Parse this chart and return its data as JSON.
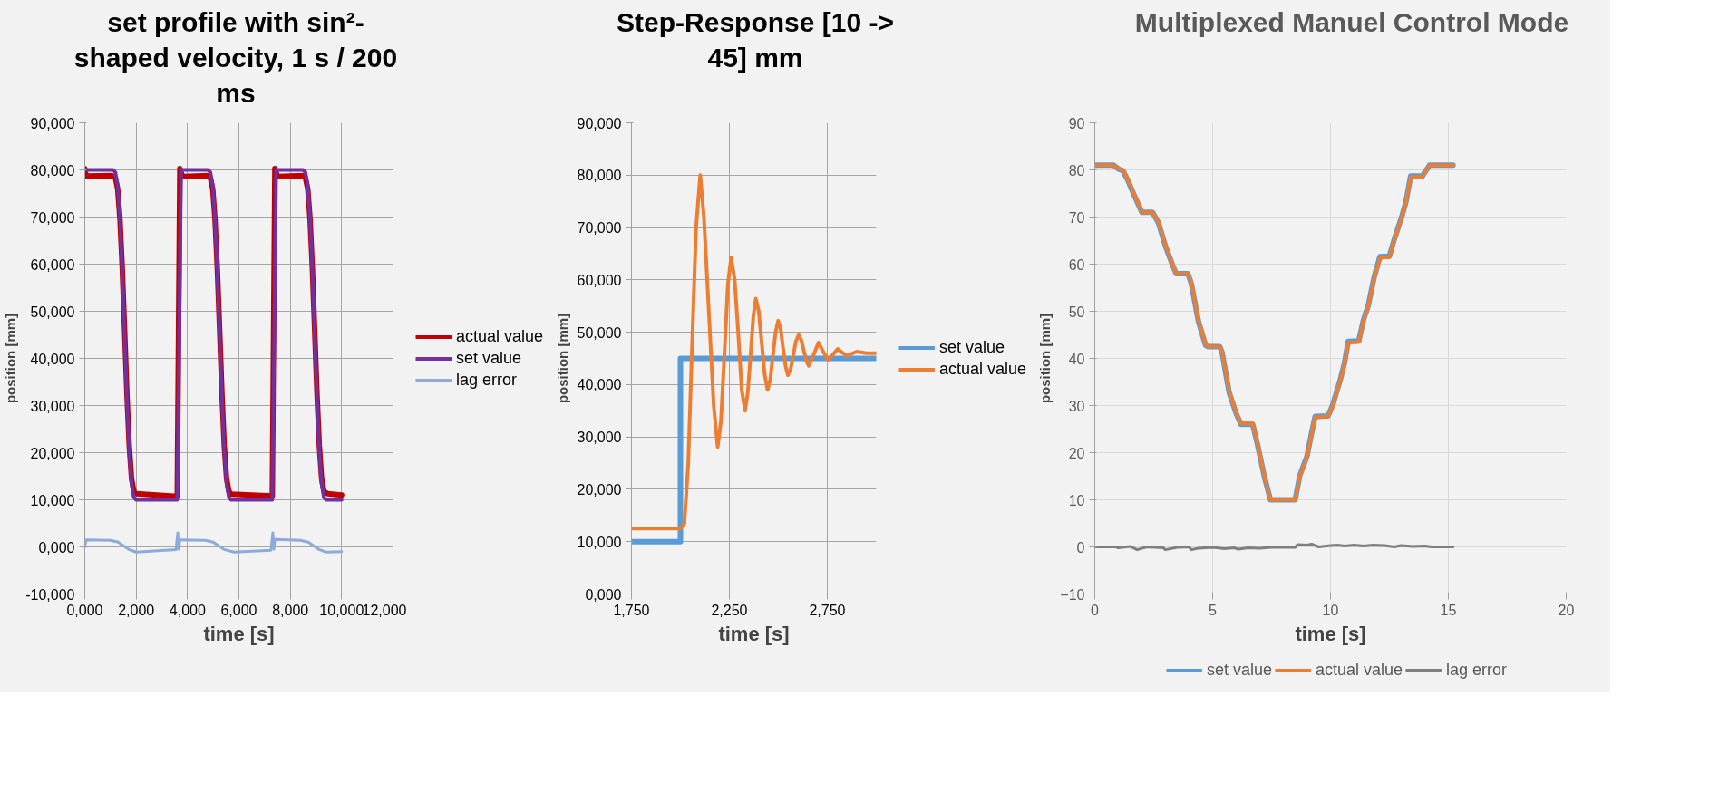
{
  "chart_data": [
    {
      "type": "line",
      "title": "set profile with sin²-shaped velocity, 1 s / 200 ms",
      "xlabel": "time [s]",
      "ylabel": "position [mm]",
      "xlim": [
        0,
        12
      ],
      "ylim": [
        -10,
        90
      ],
      "xticks": [
        {
          "value": 0,
          "label": "0,000"
        },
        {
          "value": 2,
          "label": "2,000"
        },
        {
          "value": 4,
          "label": "4,000"
        },
        {
          "value": 6,
          "label": "6,000"
        },
        {
          "value": 8,
          "label": "8,000"
        },
        {
          "value": 10,
          "label": "10,000"
        },
        {
          "value": 12,
          "label": "12,000"
        }
      ],
      "yticks": [
        {
          "value": -10,
          "label": "-10,000"
        },
        {
          "value": 0,
          "label": "0,000"
        },
        {
          "value": 10,
          "label": "10,000"
        },
        {
          "value": 20,
          "label": "20,000"
        },
        {
          "value": 30,
          "label": "30,000"
        },
        {
          "value": 40,
          "label": "40,000"
        },
        {
          "value": 50,
          "label": "50,000"
        },
        {
          "value": 60,
          "label": "60,000"
        },
        {
          "value": 70,
          "label": "70,000"
        },
        {
          "value": 80,
          "label": "80,000"
        },
        {
          "value": 90,
          "label": "90,000"
        }
      ],
      "grid": true,
      "legend": "right",
      "series": [
        {
          "name": "actual value",
          "color": "#c00000",
          "x": [
            0,
            0.05,
            1.05,
            1.19,
            1.28,
            1.37,
            1.46,
            1.55,
            1.64,
            1.73,
            1.82,
            1.91,
            2.0,
            3.6,
            3.7,
            3.8,
            4.8,
            4.89,
            4.98,
            5.07,
            5.16,
            5.25,
            5.34,
            5.43,
            5.52,
            5.61,
            5.7,
            7.3,
            7.4,
            7.5,
            8.5,
            8.59,
            8.68,
            8.77,
            8.86,
            8.95,
            9.04,
            9.13,
            9.22,
            9.31,
            9.45,
            10.0
          ],
          "values": [
            80.3,
            78.7,
            78.8,
            78.3,
            76.0,
            69.5,
            59.0,
            46.0,
            32.5,
            21.5,
            14.5,
            11.8,
            11.3,
            10.7,
            80.3,
            78.6,
            78.8,
            78.3,
            76.0,
            69.5,
            59.0,
            46.0,
            32.5,
            21.5,
            14.5,
            11.8,
            11.2,
            10.8,
            80.3,
            78.6,
            78.8,
            78.3,
            76.0,
            69.5,
            59.0,
            46.0,
            32.5,
            21.5,
            14.5,
            11.8,
            11.3,
            11.0
          ]
        },
        {
          "name": "set value",
          "color": "#7030a0",
          "x": [
            0,
            1.1,
            1.19,
            1.28,
            1.37,
            1.46,
            1.55,
            1.64,
            1.73,
            1.82,
            1.91,
            2.0,
            3.6,
            3.675,
            3.75,
            4.8,
            4.89,
            4.98,
            5.07,
            5.16,
            5.25,
            5.34,
            5.43,
            5.52,
            5.61,
            5.7,
            7.3,
            7.375,
            7.45,
            8.5,
            8.59,
            8.68,
            8.77,
            8.86,
            8.95,
            9.04,
            9.13,
            9.22,
            9.31,
            9.4,
            10.0
          ],
          "values": [
            80,
            80,
            79.5,
            76.6,
            69.6,
            58.5,
            45,
            31.5,
            20.4,
            13.4,
            10.5,
            10,
            10,
            45,
            80,
            80,
            79.5,
            76.6,
            69.6,
            58.5,
            45,
            31.5,
            20.4,
            13.4,
            10.5,
            10,
            10,
            45,
            80,
            80,
            79.5,
            76.6,
            69.6,
            58.5,
            45,
            31.5,
            20.4,
            13.4,
            10.5,
            10,
            10
          ]
        },
        {
          "name": "lag error",
          "color": "#8eaadb",
          "x": [
            0,
            0.05,
            1.0,
            1.3,
            1.7,
            2.0,
            3.55,
            3.62,
            3.66,
            3.7,
            4.7,
            5.0,
            5.4,
            5.8,
            7.25,
            7.32,
            7.36,
            7.4,
            8.4,
            8.7,
            9.1,
            9.4,
            10.0
          ],
          "values": [
            0,
            1.5,
            1.4,
            1.0,
            -0.5,
            -1.1,
            -0.6,
            3.0,
            -0.5,
            1.5,
            1.4,
            1.0,
            -0.5,
            -1.1,
            -0.7,
            3.0,
            -0.5,
            1.6,
            1.4,
            1.0,
            -0.5,
            -1.1,
            -1.0
          ]
        }
      ]
    },
    {
      "type": "line",
      "title": "Step-Response [10 -> 45] mm",
      "xlabel": "time [s]",
      "ylabel": "position [mm]",
      "xlim": [
        1.75,
        3.0
      ],
      "ylim": [
        0,
        90
      ],
      "xticks": [
        {
          "value": 1.75,
          "label": "1,750"
        },
        {
          "value": 2.25,
          "label": "2,250"
        },
        {
          "value": 2.75,
          "label": "2,750"
        }
      ],
      "yticks": [
        {
          "value": 0,
          "label": "0,000"
        },
        {
          "value": 10,
          "label": "10,000"
        },
        {
          "value": 20,
          "label": "20,000"
        },
        {
          "value": 30,
          "label": "30,000"
        },
        {
          "value": 40,
          "label": "40,000"
        },
        {
          "value": 50,
          "label": "50,000"
        },
        {
          "value": 60,
          "label": "60,000"
        },
        {
          "value": 70,
          "label": "70,000"
        },
        {
          "value": 80,
          "label": "80,000"
        },
        {
          "value": 90,
          "label": "90,000"
        }
      ],
      "grid": true,
      "legend": "right",
      "series": [
        {
          "name": "set value",
          "color": "#5b9bd5",
          "x": [
            1.75,
            2.0,
            2.0,
            3.0
          ],
          "values": [
            10,
            10,
            45,
            45
          ]
        },
        {
          "name": "actual value",
          "color": "#ed7d31",
          "x": [
            1.75,
            2.0,
            2.02,
            2.04,
            2.06,
            2.08,
            2.101,
            2.12,
            2.145,
            2.17,
            2.19,
            2.207,
            2.225,
            2.242,
            2.259,
            2.277,
            2.295,
            2.313,
            2.33,
            2.344,
            2.358,
            2.372,
            2.385,
            2.4,
            2.415,
            2.43,
            2.445,
            2.459,
            2.472,
            2.486,
            2.499,
            2.512,
            2.524,
            2.537,
            2.549,
            2.563,
            2.576,
            2.59,
            2.604,
            2.617,
            2.63,
            2.643,
            2.655,
            2.68,
            2.705,
            2.729,
            2.753,
            2.778,
            2.803,
            2.826,
            2.85,
            2.875,
            2.9,
            2.95,
            3.0
          ],
          "values": [
            12.5,
            12.5,
            13.5,
            25,
            48,
            70,
            80,
            72,
            54,
            36,
            28.1,
            33,
            46,
            59,
            64.3,
            60,
            50,
            39,
            35,
            38.5,
            45.5,
            53,
            56.4,
            54,
            48,
            42,
            39,
            41,
            45.5,
            50,
            52.2,
            50.6,
            47,
            43.5,
            41.8,
            43,
            45.6,
            48.3,
            49.5,
            48.5,
            46.5,
            44.5,
            43.6,
            45.7,
            48,
            46.3,
            44.7,
            45.7,
            46.8,
            46.1,
            45.5,
            45.9,
            46.3,
            46.0,
            46.0
          ]
        }
      ]
    },
    {
      "type": "line",
      "title": "Multiplexed Manuel Control Mode",
      "xlabel": "time [s]",
      "ylabel": "position [mm]",
      "xlim": [
        0,
        20
      ],
      "ylim": [
        -10,
        90
      ],
      "xticks": [
        0,
        5,
        10,
        15,
        20
      ],
      "yticks": [
        -10,
        0,
        10,
        20,
        30,
        40,
        50,
        60,
        70,
        80,
        90
      ],
      "grid": true,
      "legend": "bottom",
      "series": [
        {
          "name": "set value",
          "color": "#5b9bd5",
          "x": [
            0,
            0.8,
            1.0,
            1.2,
            1.4,
            1.7,
            2.0,
            2.45,
            2.7,
            3.0,
            3.3,
            3.45,
            3.95,
            4.1,
            4.4,
            4.7,
            4.8,
            5.3,
            5.4,
            5.7,
            6.0,
            6.2,
            6.7,
            6.9,
            7.2,
            7.45,
            8.5,
            8.7,
            9.0,
            9.2,
            9.35,
            9.9,
            10.1,
            10.4,
            10.6,
            10.75,
            11.2,
            11.4,
            11.6,
            11.85,
            12.1,
            12.5,
            12.7,
            13.0,
            13.2,
            13.4,
            13.9,
            14.2,
            15.2
          ],
          "values": [
            81,
            81,
            80.2,
            79.8,
            77.8,
            74.3,
            71,
            71,
            68.8,
            63.8,
            59.8,
            58,
            58,
            55.8,
            47.8,
            42.8,
            42.5,
            42.5,
            41.3,
            32.8,
            28.3,
            26,
            26,
            21.8,
            14.8,
            10,
            10,
            15.2,
            19.2,
            24.2,
            27.7,
            27.8,
            30.2,
            35.2,
            39.2,
            43.6,
            43.7,
            48.2,
            51.2,
            57.2,
            61.6,
            61.7,
            65.2,
            69.7,
            73.2,
            78.7,
            78.7,
            81,
            81
          ]
        },
        {
          "name": "actual value",
          "color": "#ed7d31",
          "x": [
            0,
            0.8,
            1.0,
            1.2,
            1.4,
            1.7,
            2.0,
            2.45,
            2.7,
            3.0,
            3.3,
            3.45,
            3.95,
            4.1,
            4.4,
            4.7,
            4.8,
            5.3,
            5.4,
            5.7,
            6.0,
            6.2,
            6.7,
            6.9,
            7.2,
            7.45,
            8.5,
            8.7,
            9.0,
            9.2,
            9.35,
            9.9,
            10.1,
            10.4,
            10.6,
            10.75,
            11.2,
            11.4,
            11.6,
            11.85,
            12.1,
            12.5,
            12.7,
            13.0,
            13.2,
            13.4,
            13.9,
            14.2,
            15.2
          ],
          "values": [
            81,
            81,
            80.3,
            80,
            78,
            74.5,
            71,
            71,
            69,
            64,
            60,
            58,
            58,
            56,
            48,
            43,
            42.5,
            42.5,
            41.5,
            33,
            28.5,
            26.2,
            26.2,
            22,
            15,
            10,
            10,
            15,
            19,
            24,
            27.5,
            27.7,
            30,
            35,
            39,
            43.3,
            43.5,
            48,
            51,
            57,
            61.3,
            61.5,
            65,
            69.5,
            73,
            78.5,
            78.5,
            81,
            81
          ]
        },
        {
          "name": "lag error",
          "color": "#7f7f7f",
          "x": [
            0,
            0.9,
            1.0,
            1.5,
            1.8,
            2.2,
            2.9,
            3.0,
            3.5,
            4.0,
            4.1,
            4.4,
            5.0,
            5.5,
            5.9,
            6.1,
            6.5,
            7.0,
            7.5,
            8.5,
            8.6,
            9.0,
            9.2,
            9.5,
            10.0,
            10.3,
            10.6,
            11.0,
            11.4,
            11.8,
            12.3,
            12.7,
            13.0,
            13.5,
            14.0,
            14.3,
            15.2
          ],
          "values": [
            0,
            0,
            -0.2,
            0.1,
            -0.6,
            0,
            -0.2,
            -0.6,
            -0.1,
            0,
            -0.6,
            -0.3,
            -0.1,
            -0.4,
            -0.2,
            -0.5,
            -0.2,
            -0.3,
            -0.1,
            -0.1,
            0.5,
            0.4,
            0.6,
            0,
            0.3,
            0.4,
            0.2,
            0.4,
            0.2,
            0.4,
            0.3,
            0,
            0.3,
            0.1,
            0.2,
            0,
            0
          ]
        }
      ]
    }
  ]
}
